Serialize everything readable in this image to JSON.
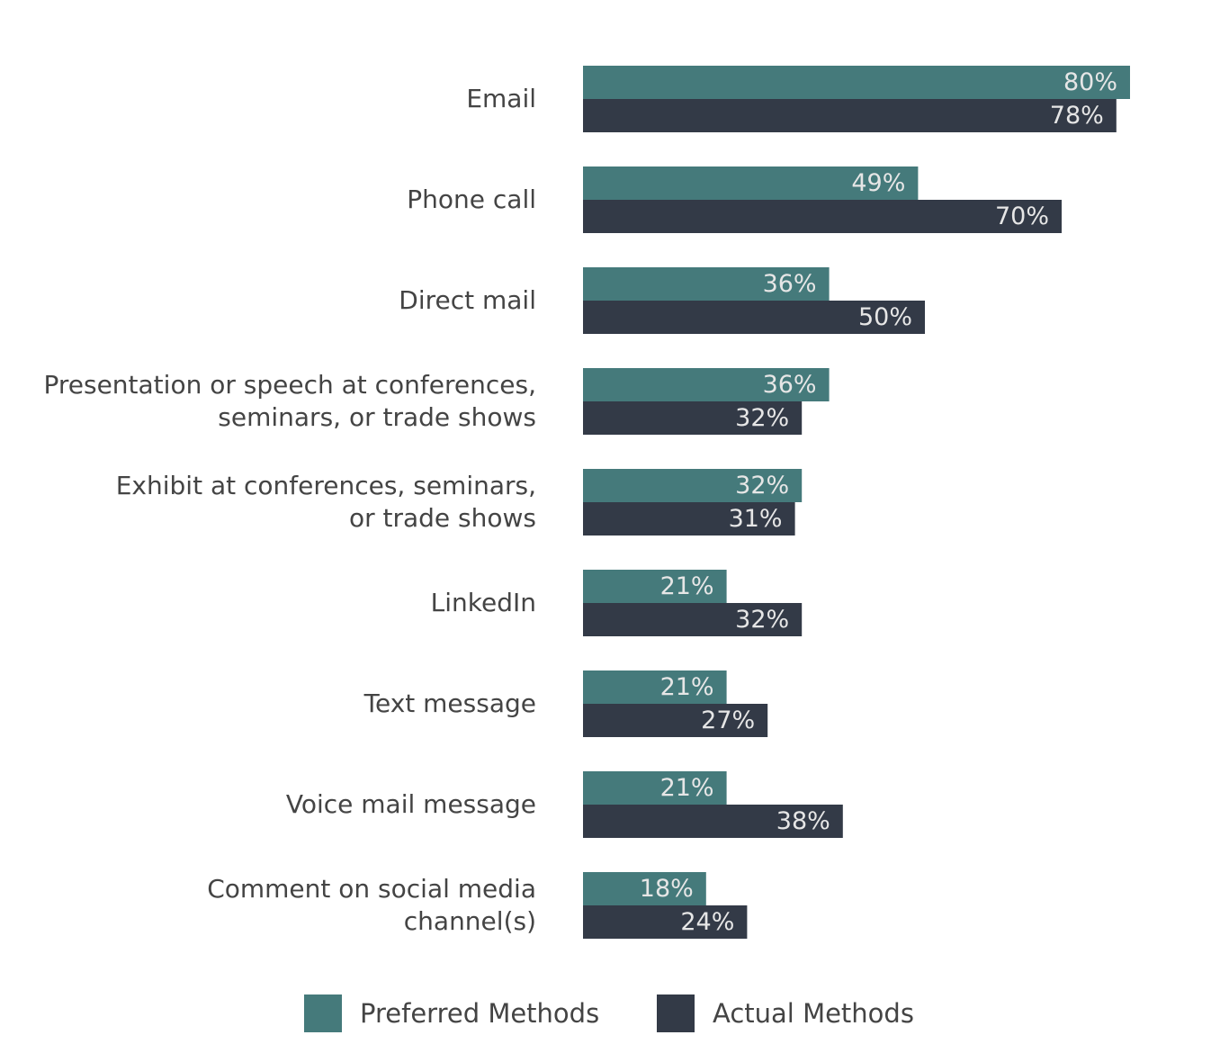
{
  "chart_data": {
    "type": "bar",
    "orientation": "horizontal",
    "categories": [
      "Email",
      "Phone call",
      "Direct mail",
      "Presentation or speech at conferences,\nseminars, or trade shows",
      "Exhibit at conferences, seminars,\nor trade shows",
      "LinkedIn",
      "Text message",
      "Voice mail message",
      "Comment on social media\nchannel(s)"
    ],
    "series": [
      {
        "name": "Preferred Methods",
        "color": "#457a7b",
        "values": [
          80,
          49,
          36,
          36,
          32,
          21,
          21,
          21,
          18
        ],
        "value_labels": [
          "80%",
          "49%",
          "36%",
          "36%",
          "32%",
          "21%",
          "21%",
          "21%",
          "18%"
        ]
      },
      {
        "name": "Actual Methods",
        "color": "#333a47",
        "values": [
          78,
          70,
          50,
          32,
          31,
          32,
          27,
          38,
          24
        ],
        "value_labels": [
          "78%",
          "70%",
          "50%",
          "32%",
          "31%",
          "32%",
          "27%",
          "38%",
          "24%"
        ]
      }
    ],
    "xlim": [
      0,
      80
    ],
    "legend": "bottom"
  }
}
